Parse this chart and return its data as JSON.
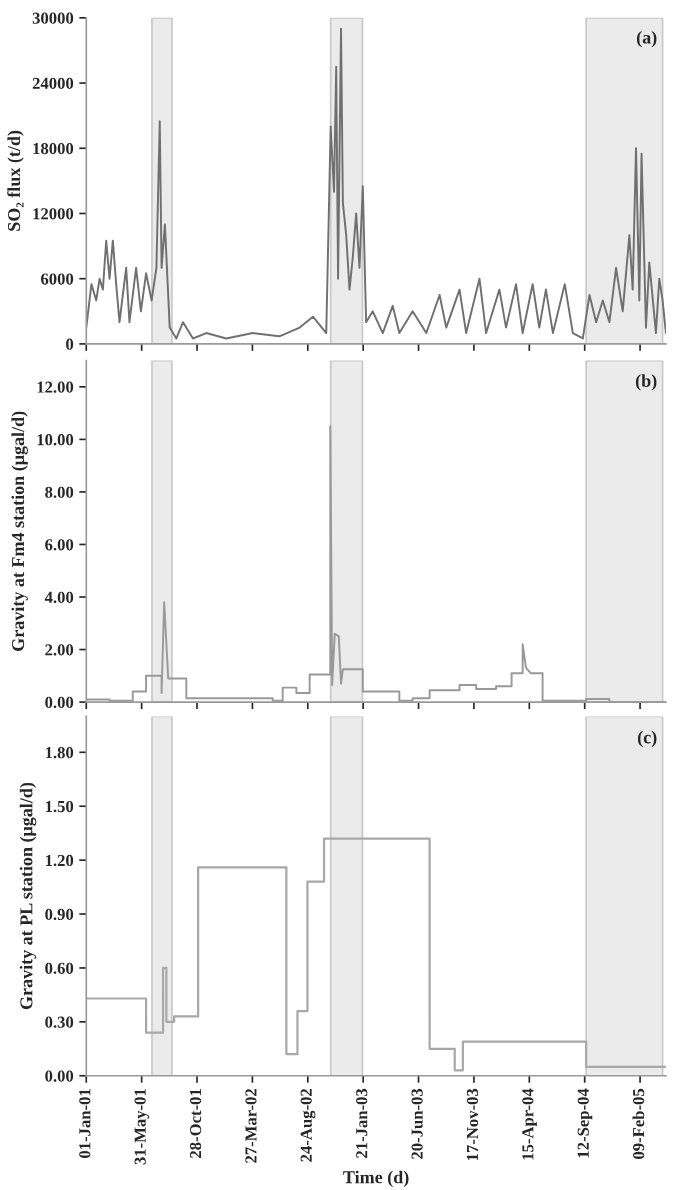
{
  "chart_data": [
    {
      "type": "line",
      "ylabel": "SO₂ flux (t/d)",
      "annotations": [
        "(a)"
      ],
      "tick_labels": "y",
      "xlim": [
        "2001-01-01",
        "2005-04-20"
      ],
      "ylim": [
        0,
        30000
      ],
      "yticks": [
        0,
        6000,
        12000,
        18000,
        24000,
        30000
      ],
      "xticks": [
        {
          "value": "2001-01-01",
          "label": null
        },
        {
          "value": "2001-05-31",
          "label": null
        },
        {
          "value": "2001-10-28",
          "label": null
        },
        {
          "value": "2002-03-27",
          "label": null
        },
        {
          "value": "2002-08-24",
          "label": null
        },
        {
          "value": "2003-01-21",
          "label": null
        },
        {
          "value": "2003-06-20",
          "label": null
        },
        {
          "value": "2003-11-17",
          "label": null
        },
        {
          "value": "2004-04-15",
          "label": null
        },
        {
          "value": "2004-09-12",
          "label": null
        },
        {
          "value": "2005-02-09",
          "label": null
        }
      ],
      "bands": [
        {
          "axis": "x",
          "from": "2001-06-28",
          "to": "2001-08-21",
          "color": "#ebebeb"
        },
        {
          "axis": "x",
          "from": "2002-10-25",
          "to": "2003-01-19",
          "color": "#ebebeb"
        },
        {
          "axis": "x",
          "from": "2004-09-16",
          "to": "2005-04-11",
          "color": "#ebebeb"
        }
      ],
      "series": [
        {
          "color": "#707070",
          "x": [
            "2001-01-01",
            "2001-01-15",
            "2001-01-28",
            "2001-02-06",
            "2001-02-15",
            "2001-02-24",
            "2001-03-05",
            "2001-03-14",
            "2001-03-23",
            "2001-04-01",
            "2001-04-19",
            "2001-04-28",
            "2001-05-16",
            "2001-05-29",
            "2001-06-12",
            "2001-06-27",
            "2001-07-10",
            "2001-07-19",
            "2001-07-24",
            "2001-08-02",
            "2001-08-15",
            "2001-09-02",
            "2001-09-20",
            "2001-10-17",
            "2001-11-22",
            "2002-01-15",
            "2002-03-28",
            "2002-06-08",
            "2002-08-02",
            "2002-09-07",
            "2002-10-13",
            "2002-10-25",
            "2002-11-03",
            "2002-11-09",
            "2002-11-14",
            "2002-11-22",
            "2002-11-27",
            "2002-12-06",
            "2002-12-15",
            "2002-12-24",
            "2003-01-02",
            "2003-01-11",
            "2003-01-20",
            "2003-01-29",
            "2003-02-16",
            "2003-03-15",
            "2003-04-11",
            "2003-04-29",
            "2003-06-04",
            "2003-07-11",
            "2003-08-16",
            "2003-09-03",
            "2003-10-09",
            "2003-10-27",
            "2003-12-02",
            "2003-12-20",
            "2004-01-25",
            "2004-02-12",
            "2004-03-10",
            "2004-03-28",
            "2004-04-24",
            "2004-05-12",
            "2004-05-30",
            "2004-06-18",
            "2004-07-20",
            "2004-08-11",
            "2004-09-07",
            "2004-09-25",
            "2004-10-13",
            "2004-10-31",
            "2004-11-18",
            "2004-12-06",
            "2004-12-24",
            "2005-01-11",
            "2005-01-20",
            "2005-01-29",
            "2005-02-07",
            "2005-02-13",
            "2005-02-25",
            "2005-03-06",
            "2005-03-24",
            "2005-04-02",
            "2005-04-11",
            "2005-04-20"
          ],
          "values": [
            1500,
            5500,
            4000,
            6000,
            5000,
            9500,
            6000,
            9500,
            5500,
            2000,
            7000,
            2000,
            7000,
            3000,
            6500,
            4000,
            7000,
            20500,
            7000,
            11000,
            1500,
            500,
            2000,
            500,
            1000,
            500,
            1000,
            700,
            1500,
            2500,
            1000,
            20000,
            14000,
            25500,
            6000,
            29000,
            13000,
            10000,
            5000,
            8000,
            12000,
            7000,
            14500,
            2000,
            3000,
            1000,
            3500,
            1000,
            3000,
            1000,
            4500,
            1500,
            5000,
            1000,
            6000,
            1000,
            5000,
            1500,
            5500,
            1000,
            5500,
            1500,
            5000,
            1000,
            5500,
            1000,
            500,
            4500,
            2000,
            4000,
            2000,
            7000,
            3000,
            10000,
            5000,
            18000,
            4000,
            17500,
            1500,
            7500,
            1000,
            6000,
            4000,
            1000
          ]
        }
      ]
    },
    {
      "type": "line",
      "ylabel": "Gravity at Fm4 station (μgal/d)",
      "annotations": [
        "(b)"
      ],
      "tick_labels": "y",
      "xlim": [
        "2001-01-01",
        "2005-04-20"
      ],
      "ylim": [
        0,
        13
      ],
      "yticks": [
        {
          "value": 0,
          "label": "0.00"
        },
        {
          "value": 2,
          "label": "2.00"
        },
        {
          "value": 4,
          "label": "4.00"
        },
        {
          "value": 6,
          "label": "6.00"
        },
        {
          "value": 8,
          "label": "8.00"
        },
        {
          "value": 10,
          "label": "10.00"
        },
        {
          "value": 12,
          "label": "12.00"
        }
      ],
      "xticks": [
        {
          "value": "2001-01-01",
          "label": null
        },
        {
          "value": "2001-05-31",
          "label": null
        },
        {
          "value": "2001-10-28",
          "label": null
        },
        {
          "value": "2002-03-27",
          "label": null
        },
        {
          "value": "2002-08-24",
          "label": null
        },
        {
          "value": "2003-01-21",
          "label": null
        },
        {
          "value": "2003-06-20",
          "label": null
        },
        {
          "value": "2003-11-17",
          "label": null
        },
        {
          "value": "2004-04-15",
          "label": null
        },
        {
          "value": "2004-09-12",
          "label": null
        },
        {
          "value": "2005-02-09",
          "label": null
        }
      ],
      "bands": [
        {
          "axis": "x",
          "from": "2001-06-28",
          "to": "2001-08-21",
          "color": "#ebebeb"
        },
        {
          "axis": "x",
          "from": "2002-10-25",
          "to": "2003-01-19",
          "color": "#ebebeb"
        },
        {
          "axis": "x",
          "from": "2004-09-16",
          "to": "2005-04-11",
          "color": "#ebebeb"
        }
      ],
      "series": [
        {
          "color": "#999999",
          "x": [
            "2001-01-01",
            "2001-03-05",
            "2001-03-05",
            "2001-05-07",
            "2001-05-07",
            "2001-06-12",
            "2001-06-12",
            "2001-07-24",
            "2001-07-24",
            "2001-07-31",
            "2001-08-11",
            "2001-09-29",
            "2001-09-29",
            "2002-05-21",
            "2002-05-21",
            "2002-06-17",
            "2002-06-17",
            "2002-07-24",
            "2002-07-24",
            "2002-08-29",
            "2002-08-29",
            "2002-10-24",
            "2002-10-24",
            "2002-10-29",
            "2002-11-05",
            "2002-11-16",
            "2002-11-22",
            "2002-11-27",
            "2003-01-20",
            "2003-01-20",
            "2003-04-29",
            "2003-04-29",
            "2003-06-04",
            "2003-06-04",
            "2003-07-20",
            "2003-07-20",
            "2003-10-09",
            "2003-10-09",
            "2003-11-23",
            "2003-11-23",
            "2004-01-16",
            "2004-01-16",
            "2004-02-27",
            "2004-02-27",
            "2004-03-28",
            "2004-03-28",
            "2004-04-06",
            "2004-04-19",
            "2004-05-21",
            "2004-05-21",
            "2004-09-16",
            "2004-09-16",
            "2004-11-18",
            "2004-11-18",
            "2005-04-20"
          ],
          "values": [
            0.1,
            0.1,
            0.05,
            0.05,
            0.4,
            0.4,
            1.0,
            1.0,
            0.35,
            3.8,
            0.9,
            0.9,
            0.15,
            0.15,
            0.05,
            0.05,
            0.55,
            0.55,
            0.35,
            0.35,
            1.05,
            1.05,
            10.5,
            0.65,
            2.6,
            2.5,
            0.7,
            1.25,
            1.25,
            0.4,
            0.4,
            0.05,
            0.05,
            0.15,
            0.15,
            0.45,
            0.45,
            0.65,
            0.65,
            0.5,
            0.5,
            0.6,
            0.6,
            1.1,
            1.1,
            2.2,
            1.3,
            1.1,
            1.1,
            0.05,
            0.05,
            0.12,
            0.12,
            0.0,
            0.0
          ]
        }
      ]
    },
    {
      "type": "step",
      "ylabel": "Gravity at PL station (μgal/d)",
      "xlabel": "Time (d)",
      "annotations": [
        "(c)"
      ],
      "xlim": [
        "2001-01-01",
        "2005-04-20"
      ],
      "ylim": [
        0,
        2.0
      ],
      "yticks": [
        {
          "value": 0,
          "label": "0.00"
        },
        {
          "value": 0.3,
          "label": "0.30"
        },
        {
          "value": 0.6,
          "label": "0.60"
        },
        {
          "value": 0.9,
          "label": "0.90"
        },
        {
          "value": 1.2,
          "label": "1.20"
        },
        {
          "value": 1.5,
          "label": "1.50"
        },
        {
          "value": 1.8,
          "label": "1.80"
        }
      ],
      "xticks": [
        {
          "value": "2001-01-01",
          "label": "01-Jan-01"
        },
        {
          "value": "2001-05-31",
          "label": "31-May-01"
        },
        {
          "value": "2001-10-28",
          "label": "28-Oct-01"
        },
        {
          "value": "2002-03-27",
          "label": "27-Mar-02"
        },
        {
          "value": "2002-08-24",
          "label": "24-Aug-02"
        },
        {
          "value": "2003-01-21",
          "label": "21-Jan-03"
        },
        {
          "value": "2003-06-20",
          "label": "20-Jun-03"
        },
        {
          "value": "2003-11-17",
          "label": "17-Nov-03"
        },
        {
          "value": "2004-04-15",
          "label": "15-Apr-04"
        },
        {
          "value": "2004-09-12",
          "label": "12-Sep-04"
        },
        {
          "value": "2005-02-09",
          "label": "09-Feb-05"
        }
      ],
      "bands": [
        {
          "axis": "x",
          "from": "2001-06-28",
          "to": "2001-08-21",
          "color": "#ebebeb"
        },
        {
          "axis": "x",
          "from": "2002-10-25",
          "to": "2003-01-19",
          "color": "#ebebeb"
        },
        {
          "axis": "x",
          "from": "2004-09-16",
          "to": "2005-04-11",
          "color": "#ebebeb"
        }
      ],
      "series": [
        {
          "color": "#a8a8a8",
          "x": [
            "2001-01-01",
            "2001-06-12",
            "2001-07-28",
            "2001-08-06",
            "2001-08-27",
            "2001-10-31",
            "2002-06-27",
            "2002-07-27",
            "2002-08-23",
            "2002-10-07",
            "2003-07-20",
            "2003-09-26",
            "2003-10-18",
            "2004-09-16",
            "2005-04-20"
          ],
          "values": [
            0.43,
            0.24,
            0.6,
            0.3,
            0.33,
            1.16,
            0.12,
            0.36,
            1.08,
            1.32,
            0.15,
            0.03,
            0.19,
            0.05,
            0.05
          ]
        }
      ]
    }
  ]
}
